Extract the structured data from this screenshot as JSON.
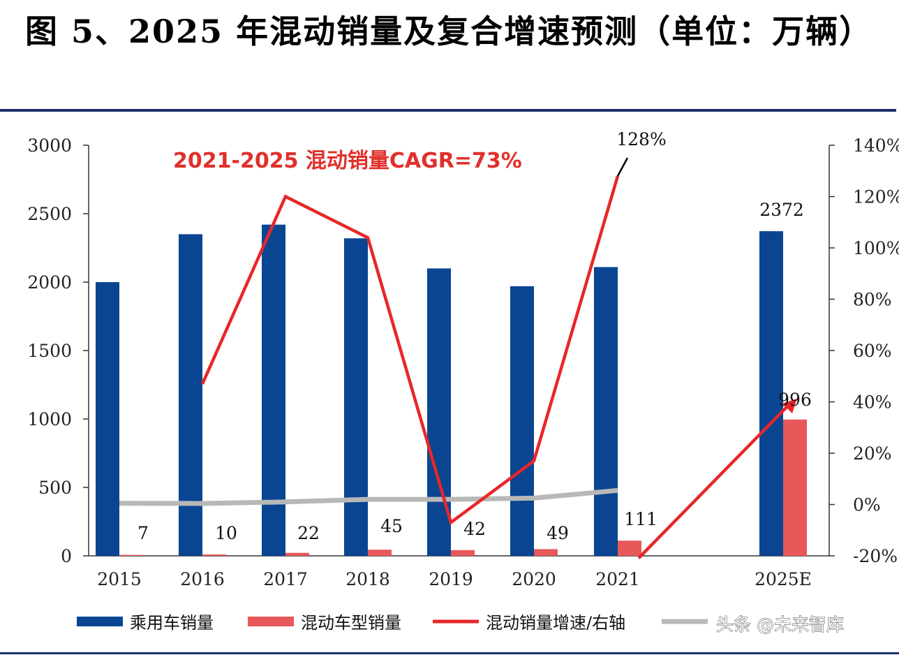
{
  "figure": {
    "title": "图 5、2025 年混动销量及复合增速预测（单位：万辆）",
    "watermark": "头条 @未来智库"
  },
  "colors": {
    "passenger": "#0a4592",
    "hybrid": "#e8585a",
    "growth": "#e8262a",
    "gray": "#b8b8b8"
  },
  "chart_data": {
    "type": "bar",
    "title": "图 5、2025 年混动销量及复合增速预测（单位：万辆）",
    "categories": [
      "2015",
      "2016",
      "2017",
      "2018",
      "2019",
      "2020",
      "2021",
      "2025E"
    ],
    "series": [
      {
        "name": "乘用车销量",
        "type": "bar",
        "axis": "left",
        "values": [
          2000,
          2350,
          2420,
          2320,
          2100,
          1970,
          2110,
          2372
        ]
      },
      {
        "name": "混动车型销量",
        "type": "bar",
        "axis": "left",
        "values": [
          7,
          10,
          22,
          45,
          42,
          49,
          111,
          996
        ]
      },
      {
        "name": "混动销量增速/右轴",
        "type": "line",
        "axis": "right",
        "values": [
          null,
          0.47,
          1.2,
          1.04,
          -0.07,
          0.17,
          1.28,
          null
        ]
      },
      {
        "name": "",
        "type": "line",
        "axis": "right",
        "values": [
          0.005,
          0.004,
          0.01,
          0.02,
          0.02,
          0.025,
          0.055,
          null
        ]
      }
    ],
    "trend_arrow": {
      "from_category": "2021",
      "to_category": "2025E",
      "from_value": 111,
      "to_value": 996
    },
    "data_labels": [
      {
        "category": "2015",
        "text": "7"
      },
      {
        "category": "2016",
        "text": "10"
      },
      {
        "category": "2017",
        "text": "22"
      },
      {
        "category": "2018",
        "text": "45"
      },
      {
        "category": "2019",
        "text": "42"
      },
      {
        "category": "2020",
        "text": "49"
      },
      {
        "category": "2021",
        "text": "111"
      },
      {
        "category": "2025E",
        "text": "2372"
      },
      {
        "category": "2025E",
        "text": "996"
      }
    ],
    "callout_label": "128%",
    "annotation": "2021-2025  混动销量CAGR=73%",
    "ylim_left": [
      0,
      3000
    ],
    "ylim_right": [
      -0.2,
      1.4
    ],
    "yticks_left": [
      "0",
      "500",
      "1000",
      "1500",
      "2000",
      "2500",
      "3000"
    ],
    "yticks_right": [
      "-20%",
      "0%",
      "20%",
      "40%",
      "60%",
      "80%",
      "100%",
      "120%",
      "140%"
    ],
    "grid": false,
    "legend_position": "bottom",
    "legend": [
      "乘用车销量",
      "混动车型销量",
      "混动销量增速/右轴"
    ]
  }
}
